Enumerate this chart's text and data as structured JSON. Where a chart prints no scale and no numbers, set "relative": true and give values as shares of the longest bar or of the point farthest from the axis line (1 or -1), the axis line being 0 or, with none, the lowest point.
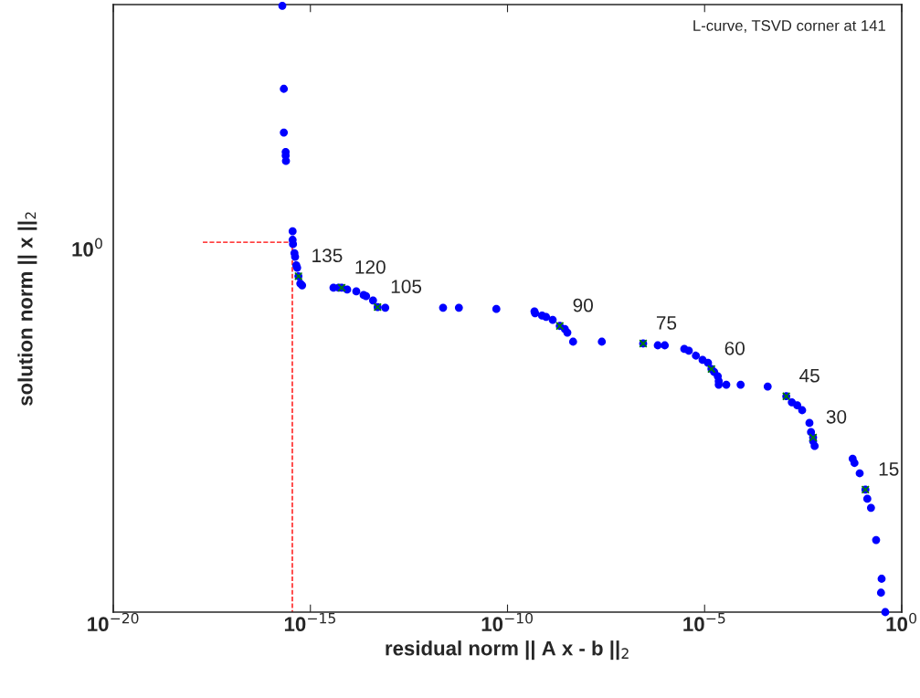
{
  "chart_data": {
    "type": "scatter",
    "log": "x",
    "grid": false,
    "legend": false,
    "relative": true,
    "xlabel": "residual norm || A x - b ||$_{2}$",
    "ylabel": "solution norm || x ||$_{2}$",
    "xlim": [
      1e-20,
      1
    ],
    "xticks": [
      {
        "value": 1e-20,
        "label": "10$^{−20}$"
      },
      {
        "value": 1e-15,
        "label": "10$^{−15}$"
      },
      {
        "value": 1e-10,
        "label": "10$^{−10}$"
      },
      {
        "value": 1e-05,
        "label": "10$^{−5}$"
      },
      {
        "value": 1,
        "label": "10$^{0}$"
      }
    ],
    "series": [
      {
        "marker": "circle",
        "color": "#0000ff",
        "x": [
          1.94e-16,
          2.12e-16,
          2.12e-16,
          2.36e-16,
          2.36e-16,
          2.4e-16,
          3.54e-16,
          3.54e-16,
          3.62e-16,
          3.94e-16,
          4.09e-16,
          4.39e-16,
          4.62e-16,
          4.98e-16,
          5.55e-16,
          6.17e-16,
          3.85e-15,
          5.21e-15,
          6.22e-15,
          8.57e-15,
          1.46e-14,
          2.24e-14,
          2.59e-14,
          3.88e-14,
          5.07e-14,
          7.93e-14,
          2.32e-12,
          5.85e-12,
          5.21e-11,
          4.83e-10,
          5.01e-10,
          7.52e-10,
          9.51e-10,
          1.4e-09,
          2.12e-09,
          2.85e-09,
          3.3e-09,
          4.61e-09,
          2.47e-08,
          2.76e-07,
          6.49e-07,
          9.77e-07,
          3.05e-06,
          3.98e-06,
          6.01e-06,
          8.87e-06,
          1.22e-05,
          1.49e-05,
          1.75e-05,
          2.16e-05,
          2.28e-05,
          2.28e-05,
          3.55e-05,
          8.2e-05,
          0.000398,
          0.00118,
          0.00163,
          0.00224,
          0.00298,
          0.00456,
          0.005,
          0.00565,
          0.00565,
          0.00618,
          0.0569,
          0.0634,
          0.0859,
          0.12,
          0.134,
          0.166,
          0.224,
          0.309,
          0.298,
          0.383
        ],
        "values": [
          1,
          0.863,
          0.791,
          0.759,
          0.753,
          0.744,
          0.628,
          0.614,
          0.607,
          0.592,
          0.586,
          0.572,
          0.568,
          0.554,
          0.542,
          0.539,
          0.535,
          0.535,
          0.535,
          0.532,
          0.529,
          0.523,
          0.521,
          0.514,
          0.503,
          0.502,
          0.502,
          0.502,
          0.5,
          0.496,
          0.493,
          0.489,
          0.487,
          0.482,
          0.472,
          0.467,
          0.461,
          0.446,
          0.446,
          0.443,
          0.44,
          0.44,
          0.434,
          0.431,
          0.423,
          0.416,
          0.411,
          0.401,
          0.396,
          0.389,
          0.381,
          0.375,
          0.375,
          0.375,
          0.372,
          0.356,
          0.346,
          0.341,
          0.333,
          0.312,
          0.297,
          0.288,
          0.282,
          0.274,
          0.253,
          0.246,
          0.229,
          0.202,
          0.187,
          0.172,
          0.119,
          0.055,
          0.032,
          0
        ]
      },
      {
        "marker": "cross",
        "color": "#008000",
        "x": [
          4.98e-16,
          6.22e-15,
          5.07e-14,
          2.12e-09,
          2.76e-07,
          1.49e-05,
          0.00118,
          0.00565,
          0.12
        ],
        "values": [
          0.554,
          0.535,
          0.503,
          0.472,
          0.443,
          0.401,
          0.356,
          0.288,
          0.202
        ]
      },
      {
        "type": "line",
        "line_style": "dashed",
        "marker": "none",
        "color": "#ff0000",
        "x": [
          1.87e-18,
          3.48e-16,
          3.48e-16
        ],
        "values": [
          0.61,
          0.61,
          0
        ]
      }
    ],
    "annotations": [
      {
        "text": "135",
        "x": 4.98e-16,
        "y": 0.554
      },
      {
        "text": "120",
        "x": 6.22e-15,
        "y": 0.535
      },
      {
        "text": "105",
        "x": 5.07e-14,
        "y": 0.503
      },
      {
        "text": "90",
        "x": 2.12e-09,
        "y": 0.472
      },
      {
        "text": "75",
        "x": 2.76e-07,
        "y": 0.443
      },
      {
        "text": "60",
        "x": 1.49e-05,
        "y": 0.401
      },
      {
        "text": "45",
        "x": 0.00118,
        "y": 0.356
      },
      {
        "text": "30",
        "x": 0.00565,
        "y": 0.288
      },
      {
        "text": "15",
        "x": 0.12,
        "y": 0.202
      },
      "L-curve, TSVD corner at 141",
      "10$^{0}$"
    ]
  }
}
